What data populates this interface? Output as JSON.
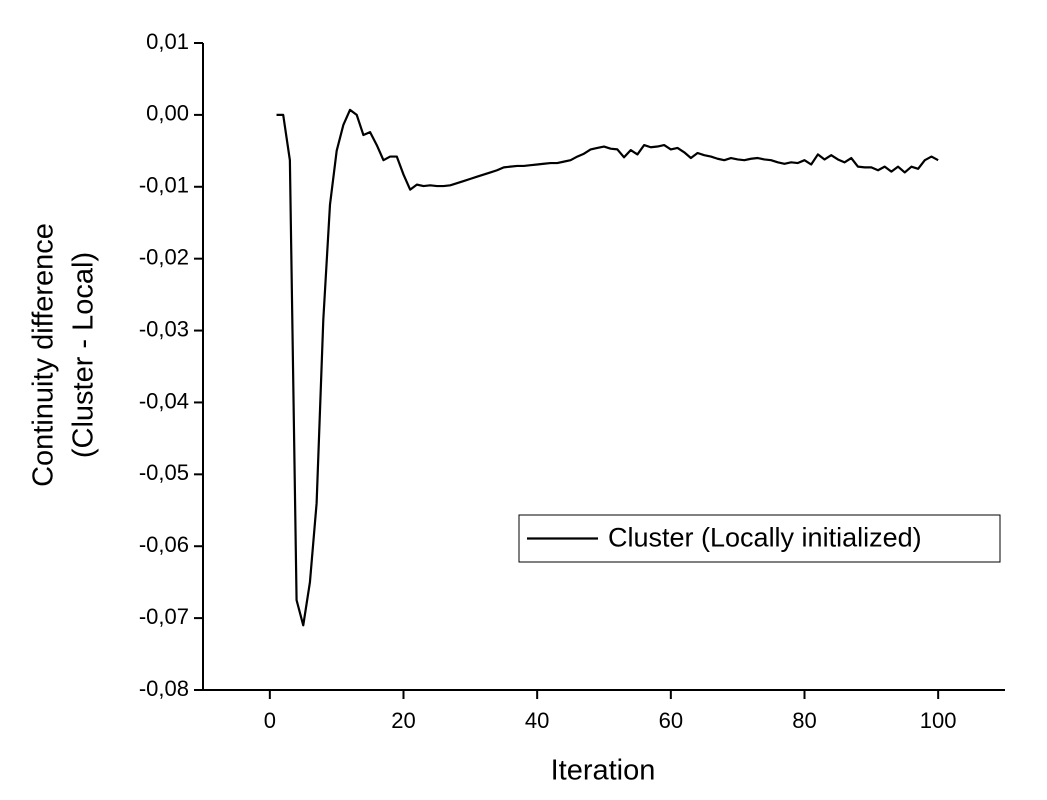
{
  "chart_data": {
    "type": "line",
    "xlabel": "Iteration",
    "ylabel": [
      "Continuity difference",
      "(Cluster - Local)"
    ],
    "x": [
      1,
      2,
      3,
      4,
      5,
      6,
      7,
      8,
      9,
      10,
      11,
      12,
      13,
      14,
      15,
      16,
      17,
      18,
      19,
      20,
      21,
      22,
      23,
      24,
      25,
      26,
      27,
      28,
      29,
      30,
      31,
      32,
      33,
      34,
      35,
      36,
      37,
      38,
      39,
      40,
      41,
      42,
      43,
      44,
      45,
      46,
      47,
      48,
      49,
      50,
      51,
      52,
      53,
      54,
      55,
      56,
      57,
      58,
      59,
      60,
      61,
      62,
      63,
      64,
      65,
      66,
      67,
      68,
      69,
      70,
      71,
      72,
      73,
      74,
      75,
      76,
      77,
      78,
      79,
      80,
      81,
      82,
      83,
      84,
      85,
      86,
      87,
      88,
      89,
      90,
      91,
      92,
      93,
      94,
      95,
      96,
      97,
      98,
      99,
      100
    ],
    "series": [
      {
        "name": "Cluster (Locally initialized)",
        "color": "#000000",
        "values": [
          0,
          0,
          -0.0063,
          -0.0675,
          -0.071,
          -0.065,
          -0.054,
          -0.0285,
          -0.0125,
          -0.005,
          -0.0014,
          0.0007,
          0,
          -0.0028,
          -0.0024,
          -0.0042,
          -0.0063,
          -0.0058,
          -0.0058,
          -0.0083,
          -0.0104,
          -0.0097,
          -0.0099,
          -0.0098,
          -0.0099,
          -0.0099,
          -0.0098,
          -0.0095,
          -0.0092,
          -0.0089,
          -0.0086,
          -0.0083,
          -0.008,
          -0.0077,
          -0.0073,
          -0.0072,
          -0.0071,
          -0.0071,
          -0.007,
          -0.0069,
          -0.0068,
          -0.0067,
          -0.0067,
          -0.0065,
          -0.0063,
          -0.0058,
          -0.0054,
          -0.0048,
          -0.0046,
          -0.0044,
          -0.0047,
          -0.0048,
          -0.0059,
          -0.0049,
          -0.0055,
          -0.0042,
          -0.0045,
          -0.0044,
          -0.0042,
          -0.0048,
          -0.0046,
          -0.0052,
          -0.006,
          -0.0053,
          -0.0056,
          -0.0058,
          -0.0061,
          -0.0063,
          -0.006,
          -0.0062,
          -0.0063,
          -0.0061,
          -0.006,
          -0.0062,
          -0.0063,
          -0.0066,
          -0.0068,
          -0.0066,
          -0.0067,
          -0.0063,
          -0.0069,
          -0.0055,
          -0.0062,
          -0.0056,
          -0.0062,
          -0.0066,
          -0.006,
          -0.0072,
          -0.0073,
          -0.0073,
          -0.0077,
          -0.0072,
          -0.0079,
          -0.0072,
          -0.008,
          -0.0072,
          -0.0075,
          -0.0063,
          -0.0058,
          -0.0063
        ]
      }
    ],
    "xlim": [
      -10,
      110
    ],
    "xticks": [
      0,
      20,
      40,
      60,
      80,
      100
    ],
    "ylim": [
      -0.08,
      0.01
    ],
    "yticks": [
      {
        "value": 0.01,
        "label": "0,01"
      },
      {
        "value": 0,
        "label": "0,00"
      },
      {
        "value": -0.01,
        "label": "-0,01"
      },
      {
        "value": -0.02,
        "label": "-0,02"
      },
      {
        "value": -0.03,
        "label": "-0,03"
      },
      {
        "value": -0.04,
        "label": "-0,04"
      },
      {
        "value": -0.05,
        "label": "-0,05"
      },
      {
        "value": -0.06,
        "label": "-0,06"
      },
      {
        "value": -0.07,
        "label": "-0,07"
      },
      {
        "value": -0.08,
        "label": "-0,08"
      }
    ],
    "grid": false,
    "legend": "lower-right"
  }
}
